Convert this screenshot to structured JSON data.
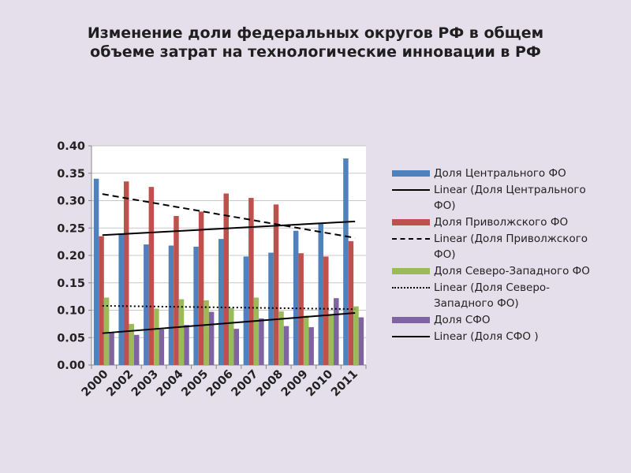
{
  "slide": {
    "title_line1": "Изменение доли федеральных округов РФ в общем",
    "title_line2": "объеме затрат на технологические инновации в РФ"
  },
  "chart_data": {
    "type": "bar",
    "title": "",
    "xlabel": "",
    "ylabel": "",
    "ylim": [
      0,
      0.4
    ],
    "yticks": [
      "0.00",
      "0.05",
      "0.10",
      "0.15",
      "0.20",
      "0.25",
      "0.30",
      "0.35",
      "0.40"
    ],
    "grid": true,
    "legend_position": "right",
    "categories": [
      "2000",
      "2002",
      "2003",
      "2004",
      "2005",
      "2006",
      "2007",
      "2008",
      "2009",
      "2010",
      "2011"
    ],
    "series": [
      {
        "name": "Доля Центрального ФО",
        "color": "#4f81bd",
        "values": [
          0.34,
          0.24,
          0.22,
          0.218,
          0.216,
          0.23,
          0.198,
          0.205,
          0.245,
          0.258,
          0.377
        ]
      },
      {
        "name": "Доля Приволжского ФО",
        "color": "#c0504d",
        "values": [
          0.235,
          0.335,
          0.325,
          0.272,
          0.28,
          0.313,
          0.305,
          0.293,
          0.204,
          0.198,
          0.226
        ]
      },
      {
        "name": "Доля Северо-Западного ФО",
        "color": "#9bbb59",
        "values": [
          0.123,
          0.075,
          0.103,
          0.12,
          0.118,
          0.104,
          0.123,
          0.098,
          0.09,
          0.09,
          0.107
        ]
      },
      {
        "name": "Доля СФО",
        "color": "#8064a2",
        "values": [
          0.06,
          0.055,
          0.065,
          0.073,
          0.097,
          0.066,
          0.085,
          0.071,
          0.069,
          0.122,
          0.087
        ]
      }
    ],
    "trendlines": [
      {
        "name": "Linear (Доля Центрального ФО)",
        "style": "solid",
        "start": 0.237,
        "end": 0.262
      },
      {
        "name": "Linear (Доля Приволжского ФО)",
        "style": "dashed",
        "start": 0.312,
        "end": 0.232
      },
      {
        "name": "Linear (Доля Северо-Западного ФО)",
        "style": "dotted",
        "start": 0.108,
        "end": 0.102
      },
      {
        "name": "Linear (Доля СФО )",
        "style": "solid",
        "start": 0.058,
        "end": 0.095
      }
    ]
  },
  "legend": [
    {
      "kind": "bar",
      "color": "#4f81bd",
      "label": "Доля Центрального ФО"
    },
    {
      "kind": "line",
      "style": "solid",
      "label": "Linear (Доля Центрального ФО)"
    },
    {
      "kind": "bar",
      "color": "#c0504d",
      "label": "Доля Приволжского ФО"
    },
    {
      "kind": "line",
      "style": "dash",
      "label": "Linear (Доля Приволжского ФО)"
    },
    {
      "kind": "bar",
      "color": "#9bbb59",
      "label": "Доля Северо-Западного ФО"
    },
    {
      "kind": "line",
      "style": "dot",
      "label": "Linear (Доля Северо-Западного ФО)"
    },
    {
      "kind": "bar",
      "color": "#8064a2",
      "label": "Доля СФО"
    },
    {
      "kind": "line",
      "style": "solid",
      "label": "Linear (Доля СФО )"
    }
  ]
}
